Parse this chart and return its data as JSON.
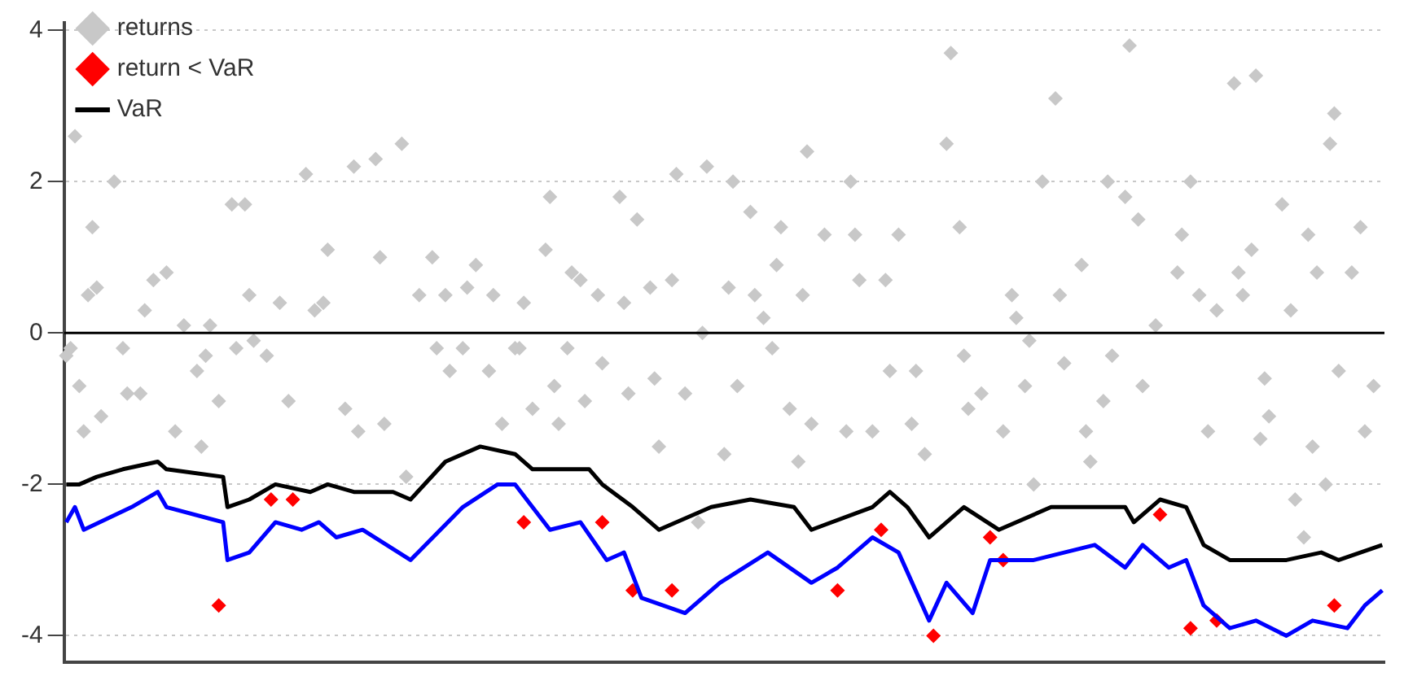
{
  "chart_data": {
    "type": "scatter",
    "categories": [
      null,
      null,
      null,
      null,
      null,
      null,
      null,
      null,
      null,
      null,
      null,
      null,
      null,
      null,
      null,
      null,
      null,
      null,
      null,
      null,
      null,
      null,
      null,
      null,
      null,
      null,
      null,
      null,
      null,
      null,
      null,
      null,
      null,
      null,
      null,
      null,
      null,
      null,
      null,
      null,
      null,
      null,
      null,
      null,
      null,
      null,
      null,
      null,
      null,
      null,
      null,
      null,
      null,
      null,
      null,
      null,
      null,
      null,
      null,
      null,
      null,
      null,
      null,
      null,
      null,
      null,
      null,
      null,
      null,
      null,
      null,
      null,
      null,
      null,
      null,
      null,
      null,
      null,
      null,
      null,
      null,
      null,
      null,
      null,
      null,
      null,
      null,
      null,
      null,
      null,
      null,
      null,
      null,
      null,
      null,
      null,
      null,
      null,
      null,
      null,
      null,
      null,
      null,
      null,
      null,
      null,
      null,
      null,
      null,
      null,
      null,
      null,
      null,
      null,
      null,
      null,
      null,
      null,
      null,
      null,
      null,
      null,
      null,
      null,
      null,
      null,
      null,
      null,
      null,
      null,
      null,
      null,
      null,
      null,
      null,
      null,
      null,
      null,
      null,
      null,
      null,
      null,
      null,
      null,
      null,
      null,
      null,
      null,
      null,
      null,
      null,
      null,
      null,
      null,
      null,
      null,
      null,
      null,
      null,
      null,
      null,
      null,
      null,
      null,
      null,
      null,
      null,
      null,
      null,
      null,
      null,
      null,
      null,
      null,
      null,
      null,
      null,
      null,
      null,
      null,
      null,
      null,
      null,
      null,
      null,
      null,
      null,
      null,
      null,
      null,
      null,
      null,
      null,
      null,
      null,
      null,
      null,
      null,
      null,
      null,
      null,
      null,
      null,
      null,
      null,
      null,
      null,
      null,
      null,
      null,
      null,
      null,
      null,
      null,
      null,
      null,
      null,
      null,
      null,
      null,
      null,
      null,
      null,
      null,
      null,
      null,
      null,
      null,
      null,
      null,
      null,
      null,
      null,
      null,
      null,
      null,
      null,
      null,
      null,
      null,
      null,
      null,
      null,
      null,
      null,
      null,
      null,
      null,
      null,
      null,
      null,
      null,
      null,
      null,
      null,
      null,
      null,
      null,
      null,
      null,
      null,
      null,
      null,
      null,
      null,
      null,
      null,
      null,
      null,
      null,
      null,
      null,
      null,
      null,
      null,
      null,
      null,
      null,
      null,
      null,
      null,
      null,
      null,
      null,
      null,
      null,
      null,
      null,
      null,
      null,
      null,
      null,
      null,
      null,
      null,
      null,
      null,
      null,
      null,
      null,
      null,
      null,
      null
    ],
    "ylim": [
      -4.35,
      4.1
    ],
    "yticks": [
      -4,
      -2,
      0,
      2,
      4
    ],
    "tick_labels": "y",
    "grid": "y",
    "legend": "top left",
    "ref_lines": [
      {
        "axis": "y",
        "value": 0,
        "color": "#000000"
      }
    ],
    "series": [
      {
        "name": "returns",
        "color": "#c8c8c8",
        "marker": "diamond",
        "values": [
          -0.3,
          -0.2,
          2.6,
          -0.7,
          -1.3,
          0.5,
          1.4,
          0.6,
          -1.1,
          null,
          null,
          2.0,
          null,
          -0.2,
          -0.8,
          null,
          null,
          -0.8,
          0.3,
          null,
          0.7,
          null,
          null,
          0.8,
          null,
          -1.3,
          null,
          0.1,
          null,
          null,
          -0.5,
          -1.5,
          -0.3,
          0.1,
          null,
          -0.9,
          null,
          null,
          1.7,
          -0.2,
          null,
          1.7,
          0.5,
          -0.1,
          null,
          null,
          -0.3,
          null,
          null,
          0.4,
          null,
          -0.9,
          null,
          null,
          null,
          2.1,
          null,
          0.3,
          null,
          0.4,
          1.1,
          null,
          null,
          null,
          -1.0,
          null,
          2.2,
          -1.3,
          null,
          null,
          null,
          2.3,
          1.0,
          -1.2,
          null,
          null,
          null,
          2.5,
          -1.9,
          null,
          null,
          0.5,
          null,
          null,
          1.0,
          -0.2,
          null,
          0.5,
          -0.5,
          null,
          null,
          -0.2,
          0.6,
          null,
          0.9,
          null,
          null,
          -0.5,
          0.5,
          null,
          -1.2,
          null,
          null,
          -0.2,
          -0.2,
          0.4,
          null,
          -1.0,
          null,
          null,
          1.1,
          1.8,
          -0.7,
          -1.2,
          null,
          -0.2,
          0.8,
          null,
          0.7,
          -0.9,
          null,
          null,
          0.5,
          -0.4,
          null,
          null,
          null,
          1.8,
          0.4,
          -0.8,
          null,
          1.5,
          null,
          null,
          0.6,
          -0.6,
          -1.5,
          null,
          null,
          0.7,
          2.1,
          null,
          -0.8,
          null,
          null,
          -2.5,
          0.0,
          2.2,
          null,
          null,
          null,
          -1.6,
          0.6,
          2.0,
          -0.7,
          null,
          null,
          1.6,
          0.5,
          null,
          0.2,
          null,
          -0.2,
          0.9,
          1.4,
          null,
          -1.0,
          null,
          -1.7,
          0.5,
          2.4,
          -1.2,
          null,
          null,
          1.3,
          null,
          null,
          null,
          null,
          -1.3,
          2.0,
          1.3,
          0.7,
          null,
          null,
          -1.3,
          null,
          null,
          0.7,
          -0.5,
          null,
          1.3,
          null,
          null,
          -1.2,
          -0.5,
          null,
          -1.6,
          null,
          null,
          null,
          null,
          2.5,
          3.7,
          null,
          1.4,
          -0.3,
          -1.0,
          null,
          null,
          -0.8,
          null,
          null,
          null,
          null,
          -1.3,
          null,
          0.5,
          0.2,
          null,
          -0.7,
          -0.1,
          -2.0,
          null,
          2.0,
          null,
          null,
          3.1,
          0.5,
          -0.4,
          null,
          null,
          null,
          0.9,
          -1.3,
          -1.7,
          null,
          null,
          -0.9,
          2.0,
          -0.3,
          null,
          null,
          1.8,
          3.8,
          null,
          1.5,
          -0.7,
          null,
          null,
          0.1,
          null,
          null,
          null,
          null,
          0.8,
          1.3,
          null,
          2.0,
          null,
          0.5,
          null,
          -1.3,
          null,
          0.3,
          null,
          null,
          null,
          3.3,
          0.8,
          0.5,
          null,
          1.1,
          3.4,
          -1.4,
          -0.6,
          -1.1,
          null,
          null,
          1.7,
          null,
          0.3,
          -2.2,
          null,
          -2.7,
          1.3,
          -1.5,
          0.8,
          null,
          -2.0,
          2.5,
          2.9,
          -0.5,
          null,
          null,
          0.8,
          null,
          1.4,
          -1.3,
          null,
          -0.7,
          null,
          null
        ]
      },
      {
        "name": "return < VaR",
        "color": "#ff0000",
        "marker": "diamond",
        "values": [
          null,
          null,
          null,
          null,
          null,
          null,
          null,
          null,
          null,
          null,
          null,
          null,
          null,
          null,
          null,
          null,
          null,
          null,
          null,
          null,
          null,
          null,
          null,
          null,
          null,
          null,
          null,
          null,
          null,
          null,
          null,
          null,
          null,
          null,
          null,
          -3.6,
          null,
          null,
          null,
          null,
          null,
          null,
          null,
          null,
          null,
          null,
          null,
          -2.2,
          null,
          null,
          null,
          null,
          -2.2,
          null,
          null,
          null,
          null,
          null,
          null,
          null,
          null,
          null,
          null,
          null,
          null,
          null,
          null,
          null,
          null,
          null,
          null,
          null,
          null,
          null,
          null,
          null,
          null,
          null,
          null,
          null,
          null,
          null,
          null,
          null,
          null,
          null,
          null,
          null,
          null,
          null,
          null,
          null,
          null,
          null,
          null,
          null,
          null,
          null,
          null,
          null,
          null,
          null,
          null,
          null,
          null,
          -2.5,
          null,
          null,
          null,
          null,
          null,
          null,
          null,
          null,
          null,
          null,
          null,
          null,
          null,
          null,
          null,
          null,
          null,
          -2.5,
          null,
          null,
          null,
          null,
          null,
          null,
          -3.4,
          null,
          null,
          null,
          null,
          null,
          null,
          null,
          null,
          -3.4,
          null,
          null,
          null,
          null,
          null,
          null,
          null,
          null,
          null,
          null,
          null,
          null,
          null,
          null,
          null,
          null,
          null,
          null,
          null,
          null,
          null,
          null,
          null,
          null,
          null,
          null,
          null,
          null,
          null,
          null,
          null,
          null,
          null,
          null,
          null,
          null,
          null,
          -3.4,
          null,
          null,
          null,
          null,
          null,
          null,
          null,
          null,
          null,
          -2.6,
          null,
          null,
          null,
          null,
          null,
          null,
          null,
          null,
          null,
          null,
          null,
          -4.0,
          null,
          null,
          null,
          null,
          null,
          null,
          null,
          null,
          null,
          null,
          null,
          null,
          -2.7,
          null,
          null,
          -3.0,
          null,
          null,
          null,
          null,
          null,
          null,
          null,
          null,
          null,
          null,
          null,
          null,
          null,
          null,
          null,
          null,
          null,
          null,
          null,
          null,
          null,
          null,
          null,
          null,
          null,
          null,
          null,
          null,
          null,
          null,
          null,
          null,
          null,
          null,
          null,
          -2.4,
          null,
          null,
          null,
          null,
          null,
          null,
          -3.9,
          null,
          null,
          null,
          null,
          null,
          -3.8,
          null,
          null,
          null,
          null,
          null,
          null,
          null,
          null,
          null,
          null,
          null,
          null,
          null,
          null,
          null,
          null,
          null,
          null,
          null,
          null,
          null,
          null,
          null,
          null,
          null,
          null,
          -3.6,
          null,
          null,
          null,
          null,
          null,
          null,
          null,
          null,
          null,
          null,
          null
        ]
      },
      {
        "type": "line",
        "color": "#0000ff",
        "marker": "none",
        "line_style": "solid",
        "values": [
          -2.5,
          null,
          -2.3,
          null,
          -2.6,
          null,
          null,
          null,
          null,
          null,
          null,
          null,
          null,
          null,
          null,
          -2.3,
          null,
          null,
          null,
          null,
          null,
          -2.1,
          null,
          -2.3,
          null,
          null,
          null,
          null,
          null,
          null,
          null,
          null,
          null,
          null,
          null,
          null,
          -2.5,
          -3.0,
          null,
          null,
          null,
          null,
          -2.9,
          null,
          null,
          null,
          null,
          null,
          -2.5,
          null,
          null,
          null,
          null,
          null,
          -2.6,
          null,
          null,
          null,
          -2.5,
          null,
          null,
          null,
          -2.7,
          null,
          null,
          null,
          null,
          null,
          -2.6,
          null,
          null,
          null,
          null,
          null,
          null,
          null,
          null,
          null,
          null,
          -3.0,
          null,
          null,
          null,
          null,
          null,
          null,
          null,
          null,
          null,
          null,
          null,
          -2.3,
          null,
          null,
          null,
          null,
          null,
          null,
          null,
          -2.0,
          null,
          null,
          null,
          -2.0,
          null,
          null,
          null,
          null,
          null,
          null,
          null,
          -2.6,
          null,
          null,
          null,
          null,
          null,
          null,
          -2.5,
          null,
          null,
          null,
          null,
          null,
          -3.0,
          null,
          null,
          null,
          -2.9,
          null,
          null,
          null,
          -3.5,
          null,
          null,
          null,
          null,
          null,
          null,
          null,
          null,
          null,
          -3.7,
          null,
          null,
          null,
          null,
          null,
          null,
          null,
          -3.3,
          null,
          null,
          null,
          null,
          null,
          null,
          null,
          null,
          null,
          null,
          -2.9,
          null,
          null,
          null,
          null,
          null,
          null,
          null,
          null,
          null,
          -3.3,
          null,
          null,
          null,
          null,
          null,
          -3.1,
          null,
          null,
          null,
          null,
          null,
          null,
          null,
          -2.7,
          null,
          null,
          null,
          null,
          null,
          -2.9,
          null,
          null,
          null,
          null,
          null,
          null,
          -3.8,
          null,
          null,
          null,
          -3.3,
          null,
          null,
          null,
          null,
          null,
          -3.7,
          null,
          null,
          null,
          -3.0,
          null,
          null,
          null,
          null,
          null,
          null,
          null,
          null,
          null,
          -3.0,
          null,
          null,
          null,
          null,
          null,
          null,
          null,
          null,
          null,
          null,
          null,
          null,
          null,
          -2.8,
          null,
          null,
          null,
          null,
          null,
          null,
          -3.1,
          null,
          null,
          null,
          -2.8,
          null,
          null,
          null,
          null,
          null,
          -3.1,
          null,
          null,
          null,
          -3.0,
          null,
          null,
          null,
          -3.6,
          null,
          null,
          null,
          null,
          null,
          -3.9,
          null,
          null,
          null,
          null,
          null,
          -3.8,
          null,
          null,
          null,
          null,
          null,
          null,
          -4.0,
          null,
          null,
          null,
          null,
          null,
          -3.8,
          null,
          null,
          null,
          null,
          null,
          null,
          null,
          -3.9,
          null,
          null,
          null,
          -3.6,
          null,
          null,
          null,
          -3.4
        ]
      },
      {
        "name": "VaR",
        "type": "line",
        "color": "#000000",
        "marker": "none",
        "line_style": "solid",
        "values": [
          -2.0,
          null,
          null,
          -2.0,
          null,
          null,
          null,
          -1.9,
          null,
          null,
          null,
          null,
          null,
          -1.8,
          null,
          null,
          null,
          null,
          null,
          null,
          null,
          -1.7,
          null,
          -1.8,
          null,
          null,
          null,
          null,
          null,
          null,
          null,
          null,
          null,
          null,
          null,
          null,
          -1.9,
          -2.3,
          null,
          null,
          null,
          null,
          -2.2,
          null,
          null,
          null,
          null,
          null,
          -2.0,
          null,
          null,
          null,
          null,
          null,
          null,
          null,
          -2.1,
          null,
          null,
          null,
          -2.0,
          null,
          null,
          null,
          null,
          null,
          -2.1,
          null,
          null,
          null,
          null,
          null,
          null,
          null,
          null,
          -2.1,
          null,
          null,
          null,
          -2.2,
          null,
          null,
          null,
          null,
          null,
          null,
          null,
          -1.7,
          null,
          null,
          null,
          null,
          null,
          null,
          null,
          -1.5,
          null,
          null,
          null,
          null,
          null,
          null,
          null,
          -1.6,
          null,
          null,
          null,
          -1.8,
          null,
          null,
          null,
          null,
          null,
          null,
          null,
          null,
          null,
          null,
          null,
          null,
          -1.8,
          null,
          null,
          -2.0,
          null,
          null,
          null,
          null,
          null,
          null,
          -2.3,
          null,
          null,
          null,
          null,
          null,
          -2.6,
          null,
          null,
          null,
          null,
          null,
          null,
          null,
          null,
          null,
          null,
          null,
          -2.3,
          null,
          null,
          null,
          null,
          null,
          null,
          null,
          null,
          -2.2,
          null,
          null,
          null,
          null,
          null,
          null,
          null,
          null,
          null,
          -2.3,
          null,
          null,
          null,
          -2.6,
          null,
          null,
          null,
          null,
          null,
          null,
          null,
          null,
          null,
          null,
          null,
          null,
          null,
          -2.3,
          null,
          null,
          null,
          -2.1,
          null,
          null,
          null,
          -2.3,
          null,
          null,
          null,
          null,
          -2.7,
          null,
          null,
          null,
          null,
          null,
          null,
          null,
          -2.3,
          null,
          null,
          null,
          null,
          null,
          null,
          null,
          -2.6,
          null,
          null,
          null,
          null,
          null,
          null,
          null,
          null,
          null,
          null,
          null,
          -2.3,
          null,
          null,
          null,
          null,
          null,
          null,
          null,
          null,
          null,
          null,
          null,
          null,
          null,
          null,
          null,
          null,
          -2.3,
          null,
          -2.5,
          null,
          null,
          null,
          null,
          null,
          -2.2,
          null,
          null,
          null,
          null,
          null,
          -2.3,
          null,
          null,
          null,
          -2.8,
          null,
          null,
          null,
          null,
          null,
          -3.0,
          null,
          null,
          null,
          null,
          null,
          null,
          null,
          null,
          null,
          null,
          null,
          null,
          -3.0,
          null,
          null,
          null,
          null,
          null,
          null,
          null,
          -2.9,
          null,
          null,
          null,
          -3.0,
          null,
          null,
          null,
          null,
          null,
          null,
          null,
          null,
          null,
          -2.8
        ]
      }
    ]
  }
}
